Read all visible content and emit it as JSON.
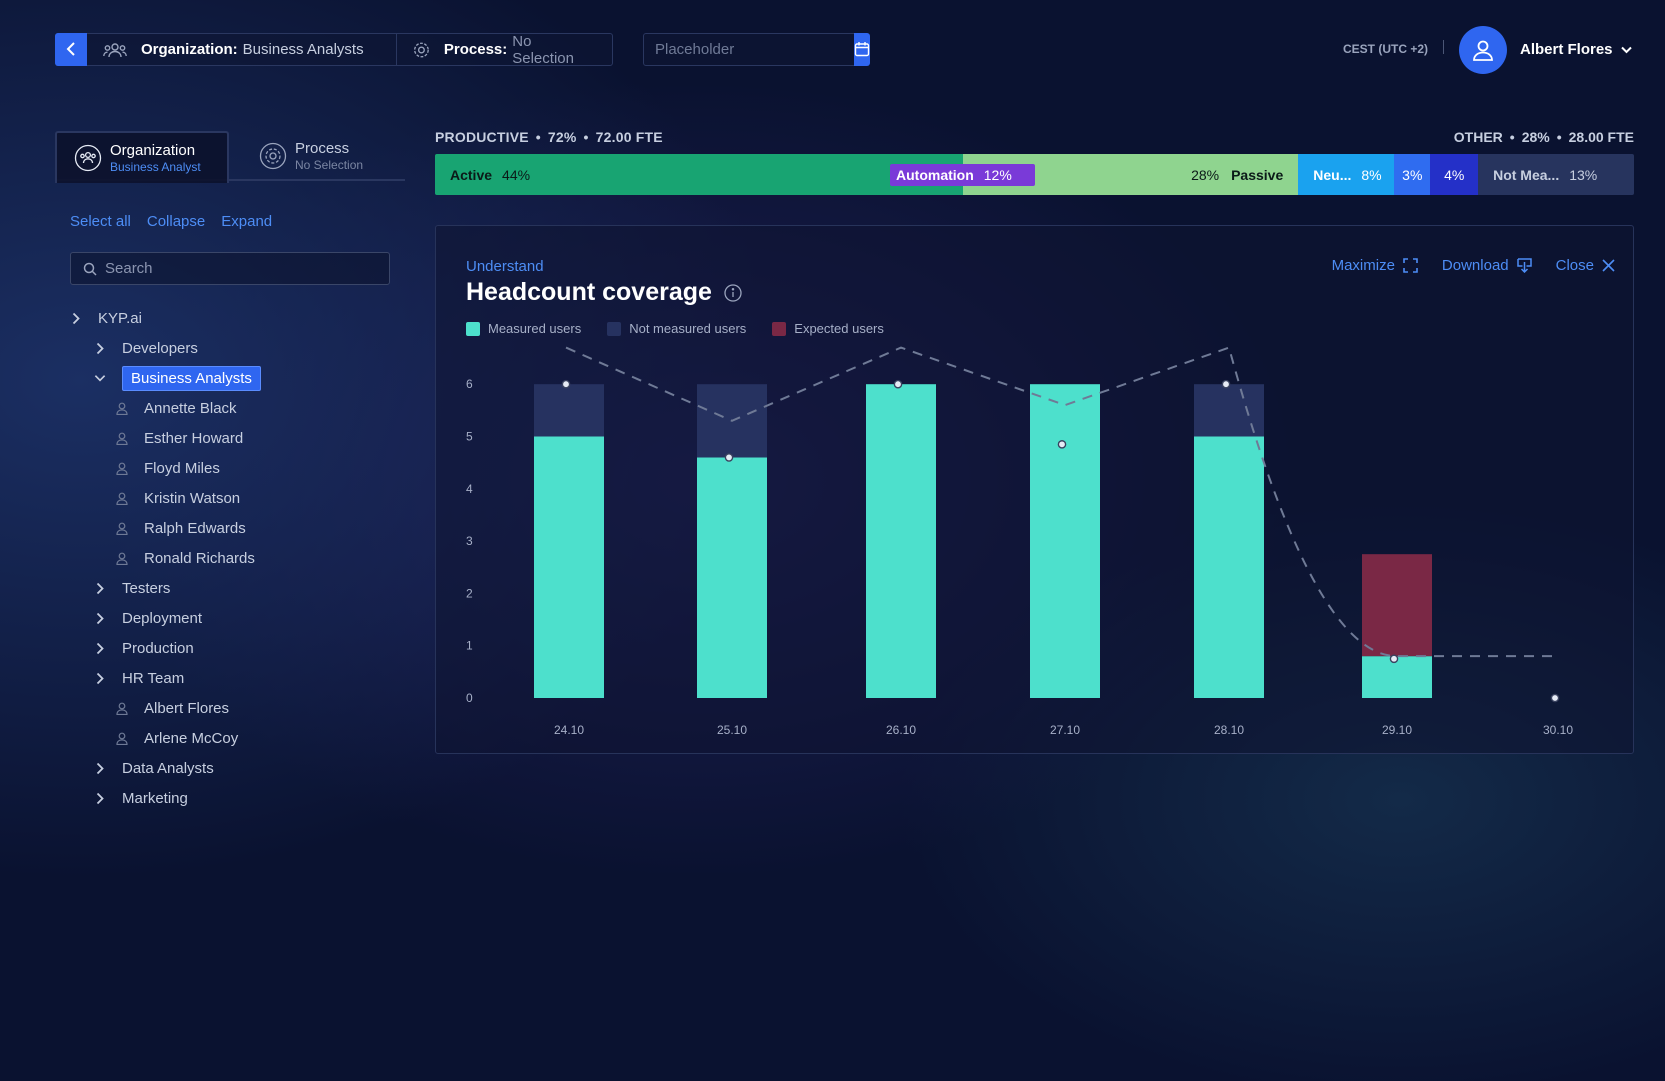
{
  "topbar": {
    "org_label": "Organization:",
    "org_value": "Business Analysts",
    "process_label": "Process:",
    "process_value": "No Selection",
    "date_placeholder": "Placeholder",
    "timezone": "CEST (UTC +2)",
    "user_name": "Albert Flores"
  },
  "left_panel": {
    "tabs": [
      {
        "title": "Organization",
        "subtitle": "Business Analyst"
      },
      {
        "title": "Process",
        "subtitle": "No Selection"
      }
    ],
    "actions": {
      "select_all": "Select all",
      "collapse": "Collapse",
      "expand": "Expand"
    },
    "search_placeholder": "Search",
    "tree": [
      {
        "label": "KYP.ai",
        "type": "group",
        "expanded": false
      },
      {
        "label": "Developers",
        "type": "group",
        "expanded": false
      },
      {
        "label": "Business Analysts",
        "type": "group",
        "expanded": true,
        "selected": true
      },
      {
        "label": "Annette Black",
        "type": "user"
      },
      {
        "label": "Esther Howard",
        "type": "user"
      },
      {
        "label": "Floyd Miles",
        "type": "user"
      },
      {
        "label": "Kristin Watson",
        "type": "user"
      },
      {
        "label": "Ralph Edwards",
        "type": "user"
      },
      {
        "label": "Ronald Richards",
        "type": "user"
      },
      {
        "label": "Testers",
        "type": "group",
        "expanded": false
      },
      {
        "label": "Deployment",
        "type": "group",
        "expanded": false
      },
      {
        "label": "Production",
        "type": "group",
        "expanded": false
      },
      {
        "label": "HR Team",
        "type": "group",
        "expanded": false
      },
      {
        "label": "Albert Flores",
        "type": "user"
      },
      {
        "label": "Arlene McCoy",
        "type": "user"
      },
      {
        "label": "Data Analysts",
        "type": "group",
        "expanded": false
      },
      {
        "label": "Marketing",
        "type": "group",
        "expanded": false
      }
    ]
  },
  "summary": {
    "productive_label": "PRODUCTIVE",
    "productive_pct": "72%",
    "productive_fte": "72.00 FTE",
    "other_label": "OTHER",
    "other_pct": "28%",
    "other_fte": "28.00 FTE",
    "dot": "•",
    "segments": [
      {
        "label": "Active",
        "pct": "44%",
        "color": "#18a472",
        "text_color": "#0b1a18",
        "share": 0.44
      },
      {
        "label": "Passive",
        "pct": "28%",
        "color": "#8fd48f",
        "text_color": "#0b1a18",
        "share": 0.28
      },
      {
        "label": "Neu...",
        "pct": "8%",
        "color": "#1aa2ef",
        "text_color": "#ffffff",
        "share": 0.08
      },
      {
        "label": "",
        "pct": "3%",
        "color": "#2f6cf0",
        "text_color": "#ffffff",
        "share": 0.03
      },
      {
        "label": "",
        "pct": "4%",
        "color": "#2430c8",
        "text_color": "#ffffff",
        "share": 0.04
      },
      {
        "label": "Not Mea...",
        "pct": "13%",
        "color": "#27345e",
        "text_color": "#c7cfe0",
        "share": 0.13
      }
    ],
    "automation": {
      "label": "Automation",
      "pct": "12%",
      "color": "#7a3ad8"
    }
  },
  "card": {
    "subtitle": "Understand",
    "title": "Headcount coverage",
    "actions": {
      "maximize": "Maximize",
      "download": "Download",
      "close": "Close"
    }
  },
  "chart_data": {
    "type": "bar",
    "stacked": true,
    "categories": [
      "24.10",
      "25.10",
      "26.10",
      "27.10",
      "28.10",
      "29.10",
      "30.10"
    ],
    "series": [
      {
        "name": "Measured users",
        "color": "#4de0cc",
        "values": [
          5,
          4.6,
          6,
          6,
          5,
          0.8,
          0
        ]
      },
      {
        "name": "Not measured users",
        "color": "#263260",
        "values": [
          1,
          1.4,
          0,
          0,
          1,
          0,
          0
        ]
      },
      {
        "name": "Expected users",
        "color": "#7a2845",
        "values": [
          0,
          0,
          0,
          0,
          0,
          1.95,
          0
        ]
      }
    ],
    "line": {
      "style": "dashed",
      "color": "#6f7a96",
      "values": [
        6.7,
        5.3,
        6.7,
        5.6,
        6.7,
        0.8,
        0.8
      ]
    },
    "markers": [
      6,
      4.6,
      6,
      4.85,
      6,
      0.75,
      0
    ],
    "yticks": [
      0,
      1,
      2,
      3,
      4,
      5,
      6
    ],
    "ylim": [
      0,
      7
    ],
    "grid": false,
    "legend_position": "top-left"
  }
}
